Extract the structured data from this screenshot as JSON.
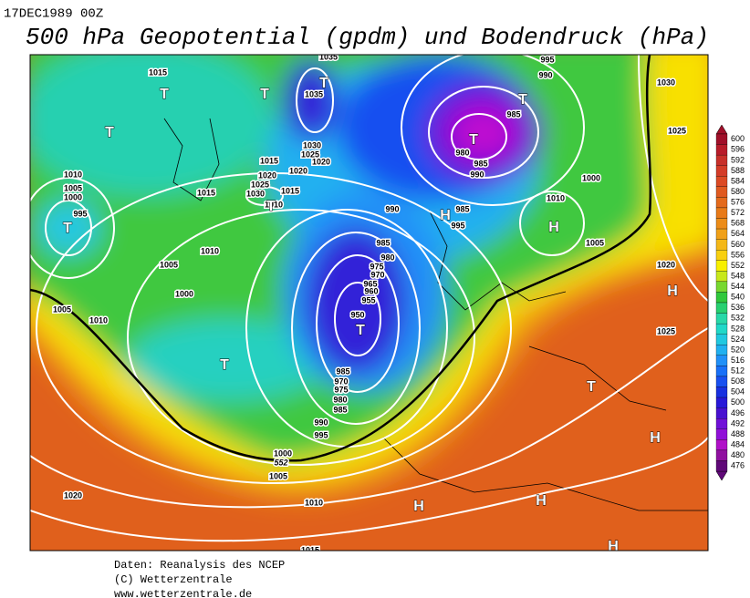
{
  "header": {
    "date": "17DEC1989 00Z",
    "title": "500 hPa Geopotential (gpdm) und Bodendruck (hPa)"
  },
  "legend": {
    "levels": [
      600,
      596,
      592,
      588,
      584,
      580,
      576,
      572,
      568,
      564,
      560,
      556,
      552,
      548,
      544,
      540,
      536,
      532,
      528,
      524,
      520,
      516,
      512,
      508,
      504,
      500,
      496,
      492,
      488,
      484,
      480,
      476
    ],
    "colors": [
      "#a0102a",
      "#b81c2a",
      "#c8302a",
      "#d43c28",
      "#dc4a24",
      "#e05a20",
      "#e46a1c",
      "#e87a18",
      "#ec8c18",
      "#f0a018",
      "#f4b818",
      "#f8d010",
      "#f8f000",
      "#c8e81c",
      "#78d830",
      "#30c83c",
      "#28d070",
      "#28d8a8",
      "#20d8c8",
      "#20c8e0",
      "#20b0f0",
      "#2090f8",
      "#1870f8",
      "#1850f0",
      "#1830e0",
      "#2818d8",
      "#4810d0",
      "#7010d8",
      "#9010d8",
      "#b010c8",
      "#9010a0",
      "#600878"
    ]
  },
  "map": {
    "pressure_labels": [
      "1015",
      "1035",
      "995",
      "990",
      "1030",
      "1035",
      "985",
      "1025",
      "1030",
      "1025",
      "1020",
      "980",
      "985",
      "990",
      "1015",
      "1020",
      "1010",
      "1020",
      "1025",
      "1030",
      "1015",
      "1010",
      "1015",
      "1005",
      "1000",
      "995",
      "1000",
      "1010",
      "990",
      "985",
      "995",
      "1005",
      "985",
      "1010",
      "980",
      "975",
      "970",
      "965",
      "960",
      "955",
      "950",
      "1005",
      "1020",
      "1000",
      "1005",
      "1010",
      "1025",
      "985",
      "970",
      "975",
      "980",
      "985",
      "990",
      "995",
      "1000",
      "1005",
      "1010",
      "1020",
      "1015"
    ],
    "system_labels": [
      "T",
      "T",
      "T",
      "T",
      "T",
      "T",
      "T",
      "T",
      "H",
      "H",
      "T",
      "T",
      "H",
      "T",
      "H",
      "H",
      "H",
      "H"
    ],
    "contour_label": "552"
  },
  "footer": {
    "lines": [
      "Daten: Reanalysis des NCEP",
      "(C) Wetterzentrale",
      "www.wetterzentrale.de"
    ]
  }
}
